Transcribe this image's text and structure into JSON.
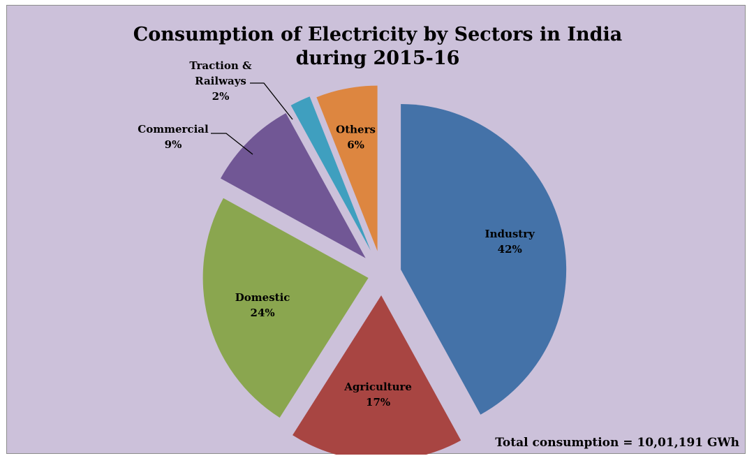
{
  "chart_data": {
    "type": "pie",
    "title_lines": [
      "Consumption of Electricity by Sectors in India",
      "during 2015-16"
    ],
    "categories": [
      "Industry",
      "Agriculture",
      "Domestic",
      "Commercial",
      "Traction & Railways",
      "Others"
    ],
    "values": [
      42,
      17,
      24,
      9,
      2,
      6
    ],
    "value_labels": [
      "42%",
      "17%",
      "24%",
      "9%",
      "2%",
      "6%"
    ],
    "label_lines": [
      [
        "Industry"
      ],
      [
        "Agriculture"
      ],
      [
        "Domestic"
      ],
      [
        "Commercial"
      ],
      [
        "Traction &",
        "Railways"
      ],
      [
        "Others"
      ]
    ],
    "colors": [
      "#4472a8",
      "#a84542",
      "#8aa64f",
      "#715795",
      "#3f9fbf",
      "#dd8640"
    ],
    "background_color": "#ccc1da",
    "exploded": true,
    "legend": "none",
    "footnote": "Total consumption = 10,01,191 GWh"
  }
}
